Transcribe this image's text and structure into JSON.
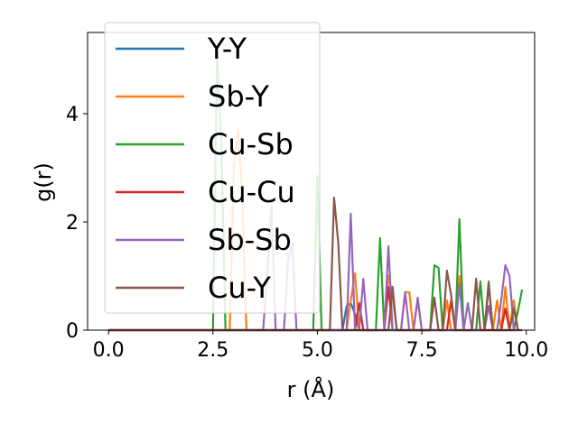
{
  "chart_data": {
    "type": "line",
    "xlabel": "r (Å)",
    "ylabel": "g(r)",
    "xlim": [
      -0.5,
      10.2
    ],
    "ylim": [
      0,
      5.5
    ],
    "xticks": [
      0.0,
      2.5,
      5.0,
      7.5,
      10.0
    ],
    "xtick_labels": [
      "0.0",
      "2.5",
      "5.0",
      "7.5",
      "10.0"
    ],
    "yticks": [
      0,
      2,
      4
    ],
    "ytick_labels": [
      "0",
      "2",
      "4"
    ],
    "legend_position": "upper-left",
    "grid": false,
    "series": [
      {
        "name": "Y-Y",
        "color": "#1f77b4",
        "x": [
          0.0,
          5.6,
          5.7,
          5.8,
          5.9,
          6.0,
          9.8
        ],
        "y": [
          0.0,
          0.0,
          0.45,
          0.5,
          0.3,
          0.0,
          0.0
        ]
      },
      {
        "name": "Sb-Y",
        "color": "#ff7f0e",
        "x": [
          0.0,
          2.9,
          3.0,
          3.1,
          3.2,
          3.3,
          5.6,
          5.7,
          5.8,
          5.9,
          6.0,
          6.6,
          6.7,
          6.8,
          6.9,
          7.0,
          7.1,
          7.2,
          7.3,
          7.4,
          7.5,
          7.6,
          8.0,
          8.1,
          8.2,
          8.3,
          8.4,
          8.5,
          8.6,
          9.2,
          9.3,
          9.4,
          9.5,
          9.6,
          9.7,
          9.8
        ],
        "y": [
          0.0,
          0.0,
          3.0,
          3.7,
          2.5,
          0.0,
          0.0,
          0.0,
          0.55,
          1.05,
          0.0,
          0.0,
          1.0,
          0.65,
          0.0,
          0.0,
          0.7,
          0.7,
          0.0,
          0.55,
          0.0,
          0.0,
          0.0,
          0.55,
          0.0,
          0.0,
          1.0,
          0.0,
          0.0,
          0.0,
          0.55,
          0.0,
          0.8,
          0.0,
          0.55,
          0.0
        ]
      },
      {
        "name": "Cu-Sb",
        "color": "#2ca02c",
        "x": [
          0.0,
          2.5,
          2.6,
          2.7,
          2.8,
          4.9,
          5.0,
          5.1,
          6.4,
          6.5,
          6.6,
          6.7,
          7.7,
          7.8,
          7.9,
          8.0,
          8.3,
          8.4,
          8.5,
          8.8,
          8.9,
          9.0,
          9.1,
          9.2,
          9.7,
          9.8,
          9.9
        ],
        "y": [
          0.0,
          0.0,
          5.1,
          3.5,
          0.0,
          0.0,
          2.85,
          0.0,
          0.0,
          1.7,
          0.0,
          0.0,
          0.0,
          1.2,
          1.15,
          0.0,
          0.0,
          2.05,
          0.0,
          0.0,
          0.9,
          0.0,
          0.9,
          0.0,
          0.0,
          0.35,
          0.75
        ]
      },
      {
        "name": "Cu-Cu",
        "color": "#d62728",
        "x": [
          0.0,
          5.9,
          6.0,
          6.1,
          6.6,
          6.7,
          6.8,
          8.1,
          8.2,
          8.3,
          9.4,
          9.5,
          9.6,
          9.7,
          9.8
        ],
        "y": [
          0.0,
          0.0,
          0.5,
          0.0,
          0.0,
          0.8,
          0.0,
          0.0,
          0.55,
          0.0,
          0.0,
          0.4,
          0.0,
          0.0,
          0.0
        ]
      },
      {
        "name": "Sb-Sb",
        "color": "#9467bd",
        "x": [
          0.0,
          3.7,
          3.8,
          3.9,
          4.0,
          4.2,
          4.3,
          4.4,
          4.5,
          5.6,
          5.7,
          5.8,
          5.9,
          6.0,
          6.1,
          6.2,
          6.6,
          6.7,
          6.8,
          6.9,
          7.0,
          7.1,
          7.2,
          7.3,
          7.4,
          7.5,
          7.6,
          7.7,
          7.8,
          8.2,
          8.3,
          8.4,
          8.5,
          8.6,
          8.7,
          9.0,
          9.1,
          9.2,
          9.3,
          9.4,
          9.5,
          9.6,
          9.7,
          9.8
        ],
        "y": [
          0.0,
          0.0,
          1.0,
          2.3,
          0.0,
          0.0,
          1.3,
          1.6,
          0.0,
          0.0,
          0.0,
          2.15,
          0.0,
          0.0,
          0.95,
          0.0,
          0.0,
          1.55,
          0.0,
          0.0,
          0.0,
          0.7,
          0.0,
          0.0,
          0.6,
          0.0,
          0.0,
          0.0,
          0.0,
          0.0,
          0.0,
          0.85,
          0.0,
          0.5,
          0.0,
          0.0,
          0.45,
          0.0,
          0.0,
          0.55,
          1.2,
          1.0,
          0.0,
          0.0
        ]
      },
      {
        "name": "Cu-Y",
        "color": "#8c564b",
        "x": [
          0.0,
          5.3,
          5.4,
          5.5,
          5.6,
          6.6,
          6.7,
          6.8,
          6.9,
          7.7,
          7.8,
          7.9,
          8.0,
          8.1,
          8.2,
          8.3,
          8.7,
          8.8,
          8.9,
          9.0,
          9.1,
          9.2,
          9.6,
          9.7,
          9.8,
          9.9
        ],
        "y": [
          0.0,
          0.0,
          2.45,
          1.6,
          0.0,
          0.0,
          0.0,
          0.8,
          0.0,
          0.0,
          0.6,
          0.0,
          0.0,
          1.1,
          0.65,
          0.0,
          0.0,
          0.95,
          0.0,
          0.0,
          0.85,
          0.0,
          0.0,
          0.4,
          0.0,
          0.0
        ]
      }
    ]
  }
}
